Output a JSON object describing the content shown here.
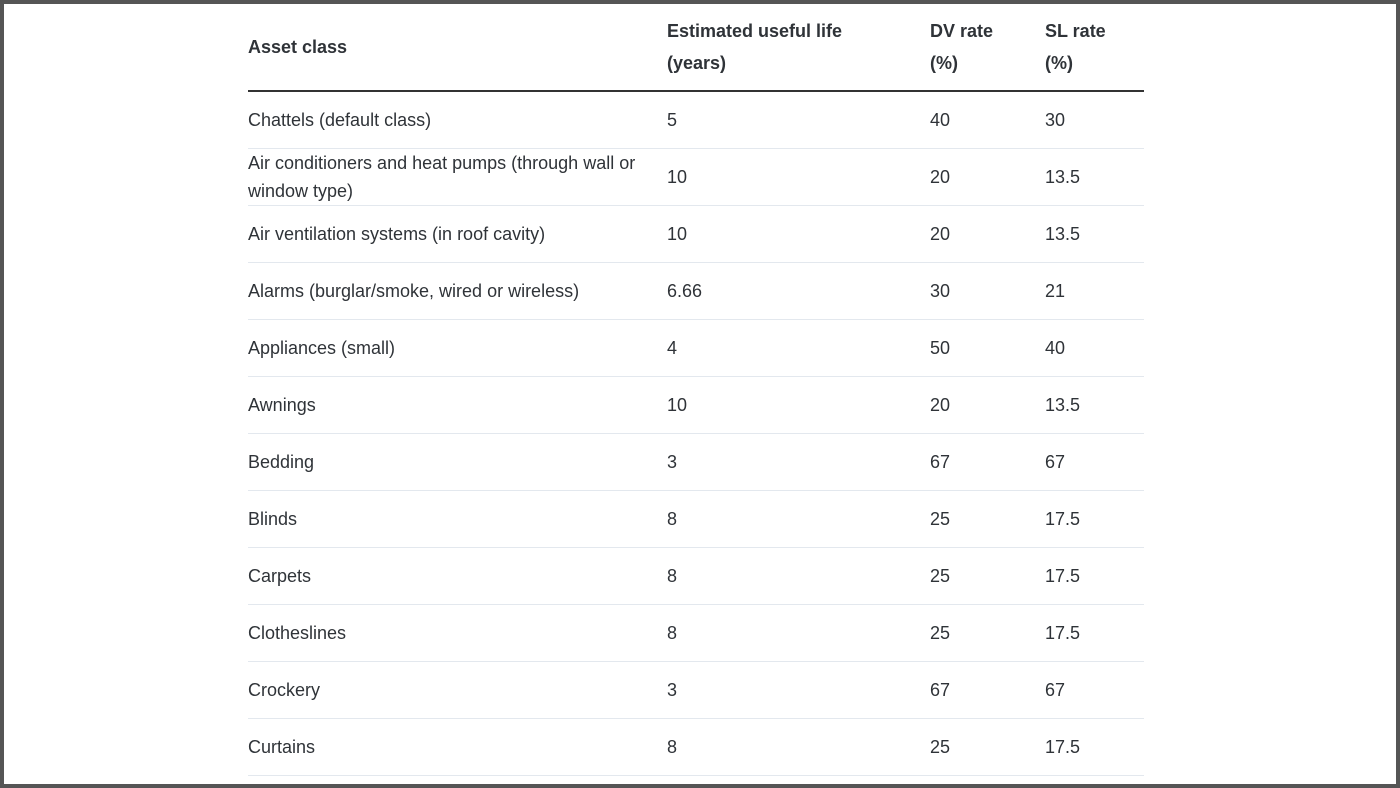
{
  "table": {
    "header": [
      "Asset class",
      "Estimated useful life (years)",
      "DV rate (%)",
      "SL rate (%)"
    ],
    "rows": [
      [
        "Chattels (default class)",
        "5",
        "40",
        "30"
      ],
      [
        "Air conditioners and heat pumps (through wall or window type)",
        "10",
        "20",
        "13.5"
      ],
      [
        "Air ventilation systems (in roof cavity)",
        "10",
        "20",
        "13.5"
      ],
      [
        "Alarms (burglar/smoke, wired or wireless)",
        "6.66",
        "30",
        "21"
      ],
      [
        "Appliances (small)",
        "4",
        "50",
        "40"
      ],
      [
        "Awnings",
        "10",
        "20",
        "13.5"
      ],
      [
        "Bedding",
        "3",
        "67",
        "67"
      ],
      [
        "Blinds",
        "8",
        "25",
        "17.5"
      ],
      [
        "Carpets",
        "8",
        "25",
        "17.5"
      ],
      [
        "Clotheslines",
        "8",
        "25",
        "17.5"
      ],
      [
        "Crockery",
        "3",
        "67",
        "67"
      ],
      [
        "Curtains",
        "8",
        "25",
        "17.5"
      ]
    ]
  }
}
